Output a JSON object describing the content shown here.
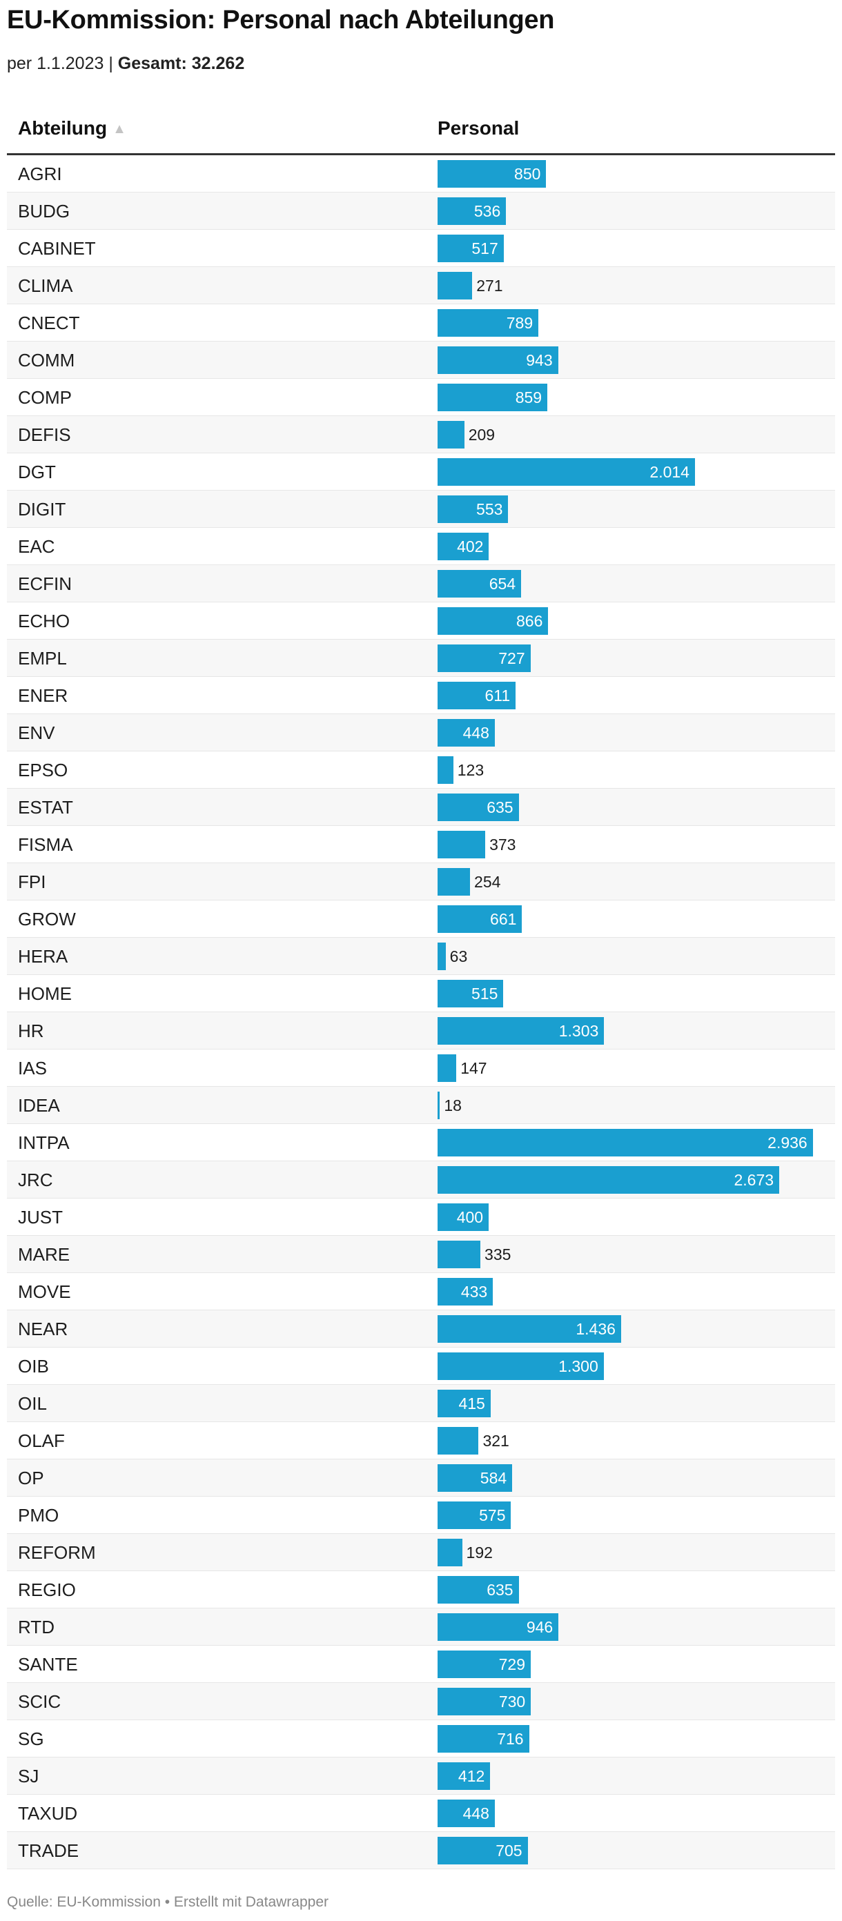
{
  "title": "EU-Kommission: Personal nach Abteilungen",
  "subtitle": {
    "prefix": "per 1.1.2023 | ",
    "total_label": "Gesamt: 32.262"
  },
  "columns": {
    "department": "Abteilung",
    "sort_arrow": "▲",
    "staff": "Personal"
  },
  "footer": "Quelle: EU-Kommission • Erstellt mit Datawrapper",
  "colors": {
    "bar": "#1a9fd0"
  },
  "chart_data": {
    "type": "bar",
    "orientation": "horizontal",
    "title": "EU-Kommission: Personal nach Abteilungen",
    "xlim": [
      0,
      3000
    ],
    "rows": [
      {
        "label": "AGRI",
        "value": 850,
        "display": "850"
      },
      {
        "label": "BUDG",
        "value": 536,
        "display": "536"
      },
      {
        "label": "CABINET",
        "value": 517,
        "display": "517"
      },
      {
        "label": "CLIMA",
        "value": 271,
        "display": "271"
      },
      {
        "label": "CNECT",
        "value": 789,
        "display": "789"
      },
      {
        "label": "COMM",
        "value": 943,
        "display": "943"
      },
      {
        "label": "COMP",
        "value": 859,
        "display": "859"
      },
      {
        "label": "DEFIS",
        "value": 209,
        "display": "209"
      },
      {
        "label": "DGT",
        "value": 2014,
        "display": "2.014"
      },
      {
        "label": "DIGIT",
        "value": 553,
        "display": "553"
      },
      {
        "label": "EAC",
        "value": 402,
        "display": "402"
      },
      {
        "label": "ECFIN",
        "value": 654,
        "display": "654"
      },
      {
        "label": "ECHO",
        "value": 866,
        "display": "866"
      },
      {
        "label": "EMPL",
        "value": 727,
        "display": "727"
      },
      {
        "label": "ENER",
        "value": 611,
        "display": "611"
      },
      {
        "label": "ENV",
        "value": 448,
        "display": "448"
      },
      {
        "label": "EPSO",
        "value": 123,
        "display": "123"
      },
      {
        "label": "ESTAT",
        "value": 635,
        "display": "635"
      },
      {
        "label": "FISMA",
        "value": 373,
        "display": "373"
      },
      {
        "label": "FPI",
        "value": 254,
        "display": "254"
      },
      {
        "label": "GROW",
        "value": 661,
        "display": "661"
      },
      {
        "label": "HERA",
        "value": 63,
        "display": "63"
      },
      {
        "label": "HOME",
        "value": 515,
        "display": "515"
      },
      {
        "label": "HR",
        "value": 1303,
        "display": "1.303"
      },
      {
        "label": "IAS",
        "value": 147,
        "display": "147"
      },
      {
        "label": "IDEA",
        "value": 18,
        "display": "18"
      },
      {
        "label": "INTPA",
        "value": 2936,
        "display": "2.936"
      },
      {
        "label": "JRC",
        "value": 2673,
        "display": "2.673"
      },
      {
        "label": "JUST",
        "value": 400,
        "display": "400"
      },
      {
        "label": "MARE",
        "value": 335,
        "display": "335"
      },
      {
        "label": "MOVE",
        "value": 433,
        "display": "433"
      },
      {
        "label": "NEAR",
        "value": 1436,
        "display": "1.436"
      },
      {
        "label": "OIB",
        "value": 1300,
        "display": "1.300"
      },
      {
        "label": "OIL",
        "value": 415,
        "display": "415"
      },
      {
        "label": "OLAF",
        "value": 321,
        "display": "321"
      },
      {
        "label": "OP",
        "value": 584,
        "display": "584"
      },
      {
        "label": "PMO",
        "value": 575,
        "display": "575"
      },
      {
        "label": "REFORM",
        "value": 192,
        "display": "192"
      },
      {
        "label": "REGIO",
        "value": 635,
        "display": "635"
      },
      {
        "label": "RTD",
        "value": 946,
        "display": "946"
      },
      {
        "label": "SANTE",
        "value": 729,
        "display": "729"
      },
      {
        "label": "SCIC",
        "value": 730,
        "display": "730"
      },
      {
        "label": "SG",
        "value": 716,
        "display": "716"
      },
      {
        "label": "SJ",
        "value": 412,
        "display": "412"
      },
      {
        "label": "TAXUD",
        "value": 448,
        "display": "448"
      },
      {
        "label": "TRADE",
        "value": 705,
        "display": "705"
      }
    ]
  }
}
